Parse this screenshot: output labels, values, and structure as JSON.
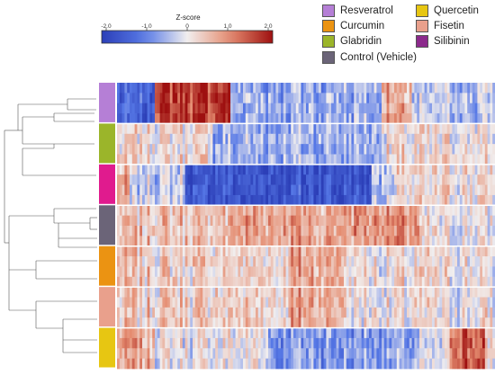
{
  "colorbar": {
    "title": "Z-score",
    "ticks": [
      "-2.0",
      "-1.0",
      "0",
      "1.0",
      "2.0"
    ],
    "tick_values": [
      -2,
      -1,
      0,
      1,
      2
    ],
    "range": [
      -2.2,
      2.2
    ],
    "colors": {
      "low": "#2c3fb8",
      "mid": "#f1eeee",
      "high": "#9e1010"
    }
  },
  "legend": {
    "items": [
      {
        "label": "Resveratrol",
        "color": "#b57fd6"
      },
      {
        "label": "Quercetin",
        "color": "#e7c612"
      },
      {
        "label": "Curcumin",
        "color": "#eb9312"
      },
      {
        "label": "Fisetin",
        "color": "#e9a08c"
      },
      {
        "label": "Glabridin",
        "color": "#9bb52a"
      },
      {
        "label": "Silibinin",
        "color": "#8c2a8c"
      },
      {
        "label": "Control (Vehicle)",
        "color": "#6b6478"
      }
    ]
  },
  "chart_data": {
    "type": "heatmap",
    "value_label": "Z-score",
    "columns_count": 150,
    "groups": [
      {
        "name": "Resveratrol",
        "profile": "strong_left_up"
      },
      {
        "name": "Glabridin",
        "profile": "mixed_blue"
      },
      {
        "name": "Silibinin",
        "profile": "strong_mid_down"
      },
      {
        "name": "Control (Vehicle)",
        "profile": "warm_up"
      },
      {
        "name": "Curcumin",
        "profile": "mild_up"
      },
      {
        "name": "Fisetin",
        "profile": "mild_up"
      },
      {
        "name": "Quercetin",
        "profile": "blue_right_red"
      }
    ],
    "dendrogram": "row clustering tree on left"
  }
}
